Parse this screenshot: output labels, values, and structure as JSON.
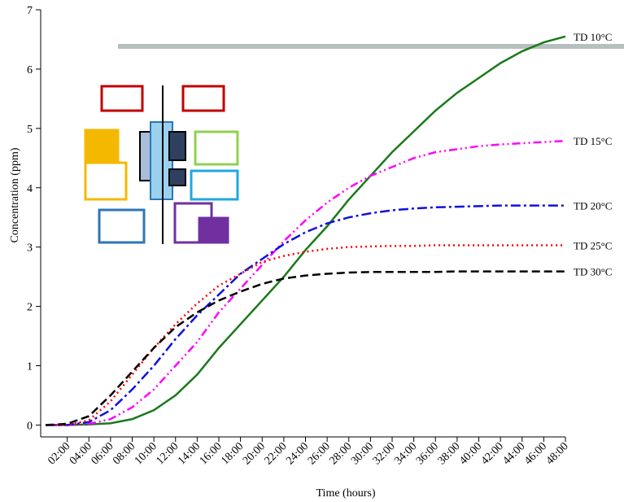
{
  "chart_data": {
    "type": "line",
    "x_label": "Time (hours)",
    "y_label": "Concentration (ppm)",
    "x": [
      0,
      2,
      4,
      6,
      8,
      10,
      12,
      14,
      16,
      18,
      20,
      22,
      24,
      26,
      28,
      30,
      32,
      34,
      36,
      38,
      40,
      42,
      44,
      46,
      48
    ],
    "series": [
      {
        "name": "TD 10°C",
        "color": "#1a7a1a",
        "dash": "",
        "values": [
          0,
          0,
          0.01,
          0.03,
          0.1,
          0.25,
          0.5,
          0.85,
          1.3,
          1.7,
          2.1,
          2.5,
          2.95,
          3.35,
          3.8,
          4.2,
          4.6,
          4.95,
          5.3,
          5.6,
          5.85,
          6.1,
          6.3,
          6.45,
          6.55
        ]
      },
      {
        "name": "TD 15°C",
        "color": "#ff00ff",
        "dash": "10 4 2 4 2 4",
        "values": [
          0,
          0,
          0.02,
          0.1,
          0.3,
          0.6,
          1.0,
          1.4,
          1.9,
          2.3,
          2.7,
          3.1,
          3.45,
          3.75,
          4.0,
          4.2,
          4.35,
          4.5,
          4.6,
          4.65,
          4.7,
          4.73,
          4.75,
          4.77,
          4.79
        ]
      },
      {
        "name": "TD 20°C",
        "color": "#1010e0",
        "dash": "12 4 3 4",
        "values": [
          0,
          0,
          0.05,
          0.25,
          0.6,
          1.0,
          1.45,
          1.85,
          2.2,
          2.55,
          2.8,
          3.05,
          3.25,
          3.4,
          3.5,
          3.57,
          3.62,
          3.65,
          3.67,
          3.68,
          3.69,
          3.7,
          3.7,
          3.7,
          3.7
        ]
      },
      {
        "name": "TD 25°C",
        "color": "#ff0000",
        "dash": "2 4",
        "values": [
          0,
          0,
          0.08,
          0.4,
          0.85,
          1.3,
          1.7,
          2.05,
          2.35,
          2.55,
          2.75,
          2.85,
          2.92,
          2.97,
          3.0,
          3.01,
          3.02,
          3.02,
          3.03,
          3.03,
          3.03,
          3.03,
          3.03,
          3.03,
          3.03
        ]
      },
      {
        "name": "TD 30°C",
        "color": "#000000",
        "dash": "10 5",
        "values": [
          0,
          0.02,
          0.15,
          0.5,
          0.9,
          1.3,
          1.65,
          1.9,
          2.1,
          2.25,
          2.38,
          2.47,
          2.52,
          2.55,
          2.57,
          2.58,
          2.58,
          2.58,
          2.58,
          2.59,
          2.59,
          2.59,
          2.59,
          2.59,
          2.59
        ]
      }
    ],
    "xlim": [
      0,
      48
    ],
    "xticks": [
      {
        "value": 2,
        "label": "02:00"
      },
      {
        "value": 4,
        "label": "04:00"
      },
      {
        "value": 6,
        "label": "06:00"
      },
      {
        "value": 8,
        "label": "08:00"
      },
      {
        "value": 10,
        "label": "10:00"
      },
      {
        "value": 12,
        "label": "12:00"
      },
      {
        "value": 14,
        "label": "14:00"
      },
      {
        "value": 16,
        "label": "16:00"
      },
      {
        "value": 18,
        "label": "18:00"
      },
      {
        "value": 20,
        "label": "20:00"
      },
      {
        "value": 22,
        "label": "22:00"
      },
      {
        "value": 24,
        "label": "24:00"
      },
      {
        "value": 26,
        "label": "26:00"
      },
      {
        "value": 28,
        "label": "28:00"
      },
      {
        "value": 30,
        "label": "30:00"
      },
      {
        "value": 32,
        "label": "32:00"
      },
      {
        "value": 34,
        "label": "34:00"
      },
      {
        "value": 36,
        "label": "36:00"
      },
      {
        "value": 38,
        "label": "38:00"
      },
      {
        "value": 40,
        "label": "40:00"
      },
      {
        "value": 42,
        "label": "42:00"
      },
      {
        "value": 44,
        "label": "44:00"
      },
      {
        "value": 46,
        "label": "46:00"
      },
      {
        "value": 48,
        "label": "48:00"
      }
    ],
    "ylim": [
      -0.2,
      7
    ],
    "yticks": [
      0,
      1,
      2,
      3,
      4,
      5,
      6,
      7
    ]
  }
}
